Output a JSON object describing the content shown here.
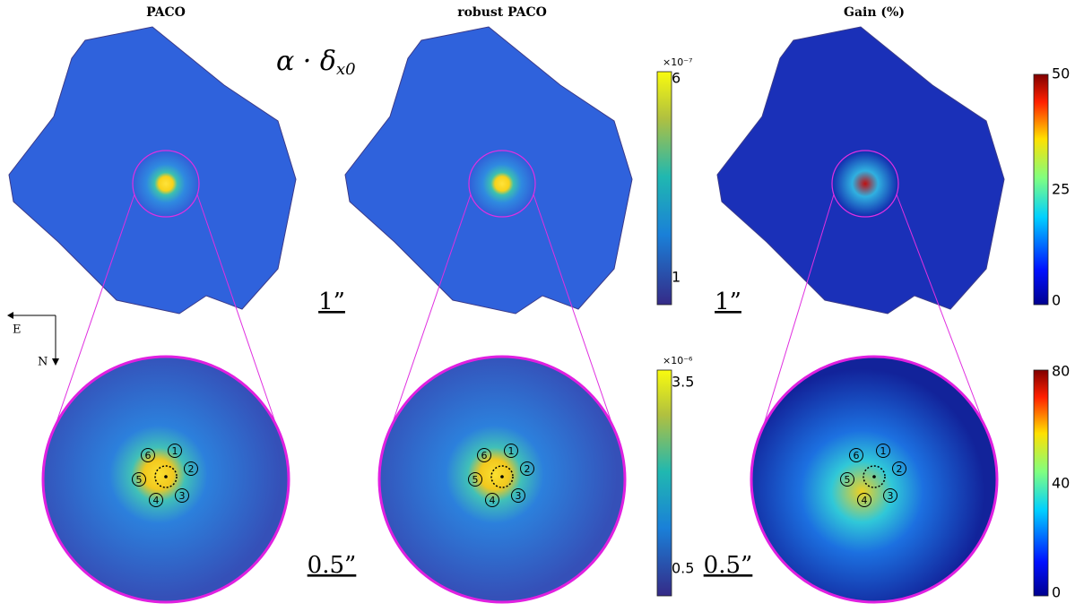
{
  "panels": [
    {
      "title": "PACO",
      "scale_top": "1”",
      "scale_bottom": "0.5”"
    },
    {
      "title": "robust PACO"
    },
    {
      "title": "Gain (%)",
      "scale_top": "1”",
      "scale_bottom": "0.5”"
    }
  ],
  "formula": {
    "main": "α · δ",
    "sub": "x0"
  },
  "colorbars": [
    {
      "exponent": "×10⁻⁷",
      "ticks": [
        "6",
        "1"
      ]
    },
    {
      "exponent": "×10⁻⁶",
      "ticks": [
        "3.5",
        "0.5"
      ]
    },
    {
      "ticks": [
        "50",
        "25",
        "0"
      ]
    },
    {
      "ticks": [
        "80",
        "40",
        "0"
      ]
    }
  ],
  "compass": {
    "east": "E",
    "north": "N"
  },
  "markers": [
    "1",
    "2",
    "3",
    "4",
    "5",
    "6"
  ]
}
